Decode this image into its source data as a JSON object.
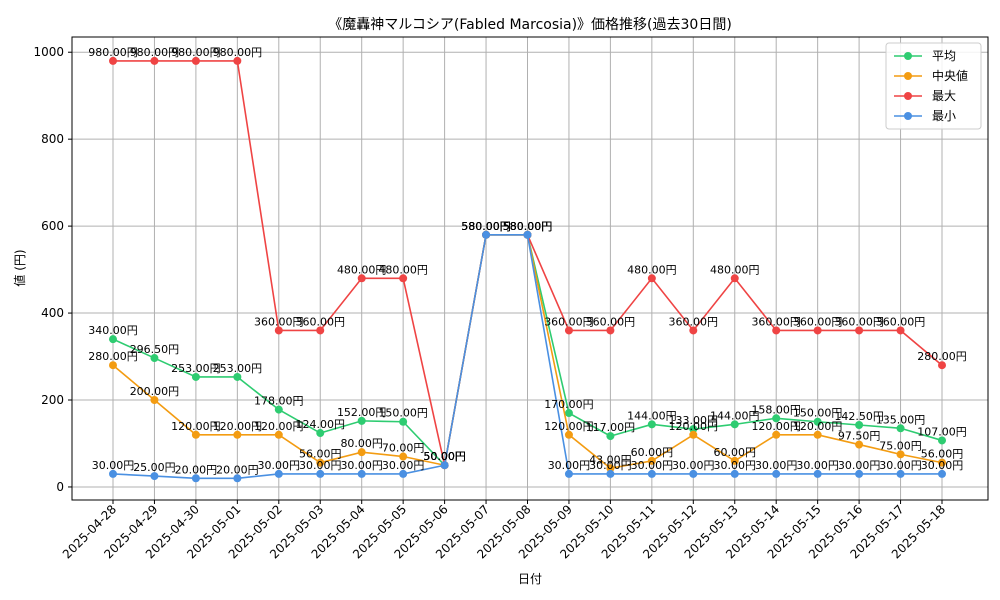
{
  "chart_data": {
    "type": "line",
    "title": "《魔轟神マルコシア(Fabled Marcosia)》価格推移(過去30日間)",
    "xlabel": "日付",
    "ylabel": "値 (円)",
    "ylim": [
      -30,
      1035
    ],
    "yticks": [
      0,
      200,
      400,
      600,
      800,
      1000
    ],
    "grid": true,
    "legend_position": "top-right",
    "value_suffix": "円",
    "categories": [
      "2025-04-28",
      "2025-04-29",
      "2025-04-30",
      "2025-05-01",
      "2025-05-02",
      "2025-05-03",
      "2025-05-04",
      "2025-05-05",
      "2025-05-06",
      "2025-05-07",
      "2025-05-08",
      "2025-05-09",
      "2025-05-10",
      "2025-05-11",
      "2025-05-12",
      "2025-05-13",
      "2025-05-14",
      "2025-05-15",
      "2025-05-16",
      "2025-05-17",
      "2025-05-18"
    ],
    "series": [
      {
        "name": "平均",
        "color": "#2ecc71",
        "values": [
          340,
          296.5,
          253,
          253,
          178,
          124,
          152,
          150,
          50,
          580,
          580,
          170,
          117,
          144,
          133,
          144,
          158,
          150,
          142.5,
          135,
          107
        ]
      },
      {
        "name": "中央値",
        "color": "#f39c12",
        "values": [
          280,
          200,
          120,
          120,
          120,
          56,
          80,
          70,
          50,
          580,
          580,
          120,
          43,
          60,
          120,
          60,
          120,
          120,
          97.5,
          75,
          56
        ]
      },
      {
        "name": "最大",
        "color": "#ef4444",
        "values": [
          980,
          980,
          980,
          980,
          360,
          360,
          480,
          480,
          50,
          580,
          580,
          360,
          360,
          480,
          360,
          480,
          360,
          360,
          360,
          360,
          280
        ]
      },
      {
        "name": "最小",
        "color": "#4a90e2",
        "values": [
          30,
          25,
          20,
          20,
          30,
          30,
          30,
          30,
          50,
          580,
          580,
          30,
          30,
          30,
          30,
          30,
          30,
          30,
          30,
          30,
          30
        ]
      }
    ]
  }
}
